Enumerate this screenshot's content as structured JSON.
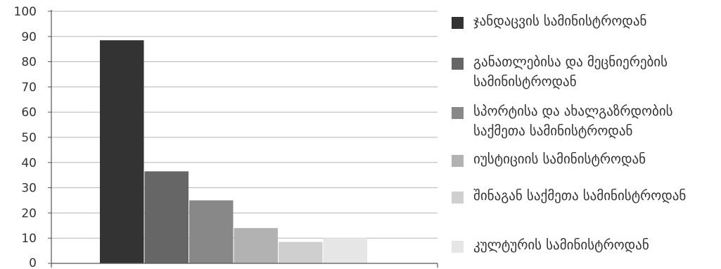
{
  "chart_data": {
    "type": "bar",
    "ylim": [
      0,
      100
    ],
    "yticks": [
      0,
      10,
      20,
      30,
      40,
      50,
      60,
      70,
      80,
      90,
      100
    ],
    "grid": true,
    "legend_position": "right",
    "series": [
      {
        "name": "ჯანდაცვის სამინისტროდან",
        "value": 88.5,
        "color": "#333333"
      },
      {
        "name": "განათლებისა და მეცნიერების სამინისტროდან",
        "value": 36.5,
        "color": "#666666"
      },
      {
        "name": "სპორტისა და ახალგაზრდობის საქმეთა სამინისტროდან",
        "value": 25,
        "color": "#888888"
      },
      {
        "name": "იუსტიციის სამინისტროდან",
        "value": 14,
        "color": "#b2b2b2"
      },
      {
        "name": "შინაგან საქმეთა სამინისტროდან",
        "value": 8.5,
        "color": "#cfcfcf"
      },
      {
        "name": "კულტურის სამინისტროდან",
        "value": 10,
        "color": "#e6e6e6"
      }
    ]
  }
}
